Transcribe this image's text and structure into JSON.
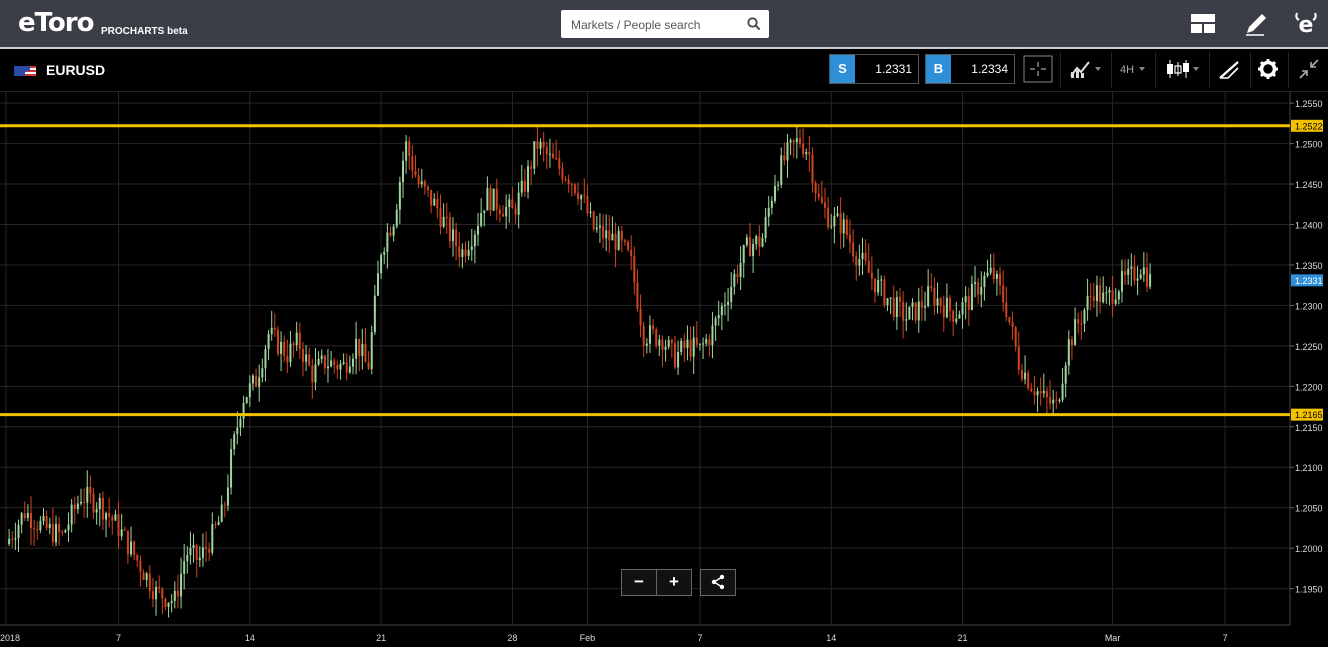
{
  "app": {
    "logo_text": "eToro",
    "logo_sub": "PROCHARTS beta",
    "search_placeholder": "Markets / People search",
    "icons": [
      "layout-icon",
      "pencil-icon",
      "etoro-e-icon"
    ]
  },
  "instrument": {
    "symbol": "EURUSD",
    "sell_label": "S",
    "sell_price": "1.2331",
    "buy_label": "B",
    "buy_price": "1.2334",
    "timeframe": "4H"
  },
  "controls": {
    "zoom_out": "−",
    "zoom_in": "+"
  },
  "colors": {
    "up": "#9fd69f",
    "down": "#d2461e",
    "level": "#f2c200",
    "accent": "#2f8fd8",
    "background": "#000000",
    "grid": "#262626"
  },
  "chart_data": {
    "type": "candlestick",
    "title": "",
    "xlabel": "",
    "ylabel": "",
    "y_ticks": [
      "1.2550",
      "1.2500",
      "1.2450",
      "1.2400",
      "1.2350",
      "1.2300",
      "1.2250",
      "1.2200",
      "1.2150",
      "1.2100",
      "1.2050",
      "1.2000",
      "1.1950"
    ],
    "x_ticks": [
      {
        "label": "2018",
        "day": 0
      },
      {
        "label": "7",
        "day": 6
      },
      {
        "label": "14",
        "day": 13
      },
      {
        "label": "21",
        "day": 20
      },
      {
        "label": "28",
        "day": 27
      },
      {
        "label": "Feb",
        "day": 31
      },
      {
        "label": "7",
        "day": 37
      },
      {
        "label": "14",
        "day": 44
      },
      {
        "label": "21",
        "day": 51
      },
      {
        "label": "Mar",
        "day": 59
      },
      {
        "label": "7",
        "day": 65
      }
    ],
    "ylim": [
      1.1905,
      1.2565
    ],
    "xlim_days": [
      0,
      67.5
    ],
    "levels": [
      {
        "value": 1.2522,
        "label": "1.2522"
      },
      {
        "value": 1.2165,
        "label": "1.2165"
      }
    ],
    "current_price": {
      "value": 1.2331,
      "label": "1.2331"
    },
    "close_path": [
      [
        0,
        1.2005
      ],
      [
        1,
        1.2045
      ],
      [
        2,
        1.2025
      ],
      [
        3,
        1.2015
      ],
      [
        4,
        1.2065
      ],
      [
        5,
        1.2055
      ],
      [
        6,
        1.2025
      ],
      [
        7,
        1.1985
      ],
      [
        8,
        1.1945
      ],
      [
        9,
        1.1935
      ],
      [
        9.6,
        1.1995
      ],
      [
        10.3,
        1.1985
      ],
      [
        11,
        1.2015
      ],
      [
        11.6,
        1.2045
      ],
      [
        12,
        1.211
      ],
      [
        12.6,
        1.2185
      ],
      [
        13.3,
        1.2205
      ],
      [
        14,
        1.2265
      ],
      [
        15,
        1.224
      ],
      [
        15.6,
        1.2255
      ],
      [
        16.3,
        1.2215
      ],
      [
        17,
        1.223
      ],
      [
        18,
        1.2225
      ],
      [
        18.7,
        1.2255
      ],
      [
        19.3,
        1.222
      ],
      [
        20,
        1.237
      ],
      [
        20.7,
        1.241
      ],
      [
        21.3,
        1.25
      ],
      [
        22,
        1.245
      ],
      [
        23,
        1.242
      ],
      [
        23.6,
        1.239
      ],
      [
        24.3,
        1.2365
      ],
      [
        25,
        1.2395
      ],
      [
        25.6,
        1.2435
      ],
      [
        26.3,
        1.2425
      ],
      [
        27,
        1.2415
      ],
      [
        27.6,
        1.2445
      ],
      [
        28.3,
        1.25
      ],
      [
        29,
        1.248
      ],
      [
        30,
        1.246
      ],
      [
        30.6,
        1.244
      ],
      [
        31.3,
        1.2395
      ],
      [
        32,
        1.2385
      ],
      [
        32.6,
        1.238
      ],
      [
        33.3,
        1.2355
      ],
      [
        34,
        1.2265
      ],
      [
        35,
        1.226
      ],
      [
        35.6,
        1.2235
      ],
      [
        36.3,
        1.225
      ],
      [
        37,
        1.2245
      ],
      [
        37.6,
        1.2265
      ],
      [
        38.3,
        1.2305
      ],
      [
        39,
        1.2345
      ],
      [
        39.6,
        1.2375
      ],
      [
        40.3,
        1.238
      ],
      [
        41,
        1.2455
      ],
      [
        41.6,
        1.2485
      ],
      [
        42.3,
        1.2505
      ],
      [
        42.8,
        1.249
      ],
      [
        43.3,
        1.243
      ],
      [
        44,
        1.2405
      ],
      [
        44.6,
        1.24
      ],
      [
        45.3,
        1.2365
      ],
      [
        46,
        1.234
      ],
      [
        46.6,
        1.232
      ],
      [
        47.3,
        1.23
      ],
      [
        48,
        1.2285
      ],
      [
        48.6,
        1.2295
      ],
      [
        49.3,
        1.2315
      ],
      [
        50,
        1.23
      ],
      [
        50.6,
        1.229
      ],
      [
        51.3,
        1.2305
      ],
      [
        52,
        1.233
      ],
      [
        52.6,
        1.234
      ],
      [
        53.3,
        1.23
      ],
      [
        54,
        1.223
      ],
      [
        54.6,
        1.2205
      ],
      [
        55.3,
        1.2185
      ],
      [
        56,
        1.2175
      ],
      [
        56.6,
        1.225
      ],
      [
        57.3,
        1.2285
      ],
      [
        58,
        1.232
      ],
      [
        58.6,
        1.2305
      ],
      [
        59.3,
        1.2325
      ],
      [
        60,
        1.2335
      ],
      [
        60.5,
        1.235
      ],
      [
        61,
        1.2331
      ]
    ]
  }
}
